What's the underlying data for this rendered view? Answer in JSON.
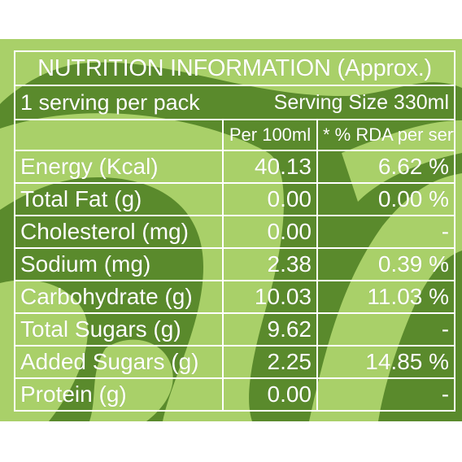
{
  "title": "NUTRITION INFORMATION (Approx.)",
  "servings_per_pack": "1 serving per pack",
  "serving_size": "Serving Size 330ml",
  "columns": [
    "Per 100ml",
    "* % RDA per serve"
  ],
  "rows": [
    {
      "nutrient": "Energy (Kcal)",
      "per100": "40.13",
      "rda": "6.62 %"
    },
    {
      "nutrient": "Total Fat (g)",
      "per100": "0.00",
      "rda": "0.00 %"
    },
    {
      "nutrient": "Cholesterol (mg)",
      "per100": "0.00",
      "rda": "-"
    },
    {
      "nutrient": "Sodium (mg)",
      "per100": "2.38",
      "rda": "0.39 %"
    },
    {
      "nutrient": "Carbohydrate (g)",
      "per100": "10.03",
      "rda": "11.03 %"
    },
    {
      "nutrient": "Total Sugars (g)",
      "per100": "9.62",
      "rda": "-"
    },
    {
      "nutrient": "Added Sugars (g)",
      "per100": "2.25",
      "rda": "14.85 %"
    },
    {
      "nutrient": "Protein (g)",
      "per100": "0.00",
      "rda": "-"
    }
  ],
  "colors": {
    "dark_green": "#5a8a2c",
    "light_green": "#a9d069",
    "text": "#ffffff"
  }
}
